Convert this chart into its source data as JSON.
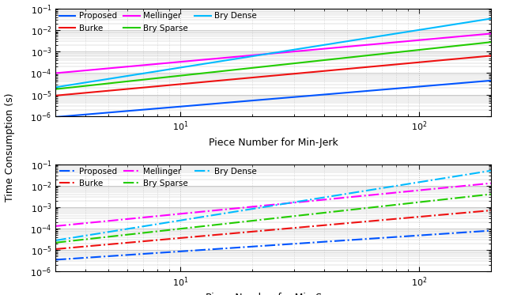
{
  "x_range": [
    3,
    200
  ],
  "ylim": [
    1e-06,
    0.1
  ],
  "top": {
    "xlabel": "Piece Number for Min-Jerk",
    "lines": [
      {
        "label": "Proposed",
        "color": "#0055FF",
        "linestyle": "-",
        "lw": 1.5,
        "start_y": 9e-07,
        "end_y": 4.5e-05
      },
      {
        "label": "Burke",
        "color": "#EE1111",
        "linestyle": "-",
        "lw": 1.5,
        "start_y": 9e-06,
        "end_y": 0.00065
      },
      {
        "label": "Mellinger",
        "color": "#FF00FF",
        "linestyle": "-",
        "lw": 1.5,
        "start_y": 0.0001,
        "end_y": 0.007
      },
      {
        "label": "Bry Sparse",
        "color": "#22CC00",
        "linestyle": "-",
        "lw": 1.5,
        "start_y": 1.8e-05,
        "end_y": 0.0028
      },
      {
        "label": "Bry Dense",
        "color": "#00BBFF",
        "linestyle": "-",
        "lw": 1.5,
        "start_y": 2.2e-05,
        "end_y": 0.035
      }
    ]
  },
  "bottom": {
    "xlabel": "Piece Number for Min-Snap",
    "lines": [
      {
        "label": "Proposed",
        "color": "#0055FF",
        "linestyle": "-.",
        "lw": 1.5,
        "start_y": 3.5e-06,
        "end_y": 8e-05
      },
      {
        "label": "Burke",
        "color": "#EE1111",
        "linestyle": "-.",
        "lw": 1.5,
        "start_y": 1.1e-05,
        "end_y": 0.0007
      },
      {
        "label": "Mellinger",
        "color": "#FF00FF",
        "linestyle": "-.",
        "lw": 1.5,
        "start_y": 0.00013,
        "end_y": 0.013
      },
      {
        "label": "Bry Sparse",
        "color": "#22CC00",
        "linestyle": "-.",
        "lw": 1.5,
        "start_y": 2.2e-05,
        "end_y": 0.004
      },
      {
        "label": "Bry Dense",
        "color": "#00BBFF",
        "linestyle": "-.",
        "lw": 1.5,
        "start_y": 2.8e-05,
        "end_y": 0.05
      }
    ]
  },
  "ylabel": "Time Consumption (s)",
  "grid_color": "#BBBBBB",
  "bg_color": "#FFFFFF",
  "legend_order_row1": [
    "Proposed",
    "Burke",
    "Mellinger"
  ],
  "legend_order_row2": [
    "Bry Sparse",
    "Bry Dense"
  ]
}
